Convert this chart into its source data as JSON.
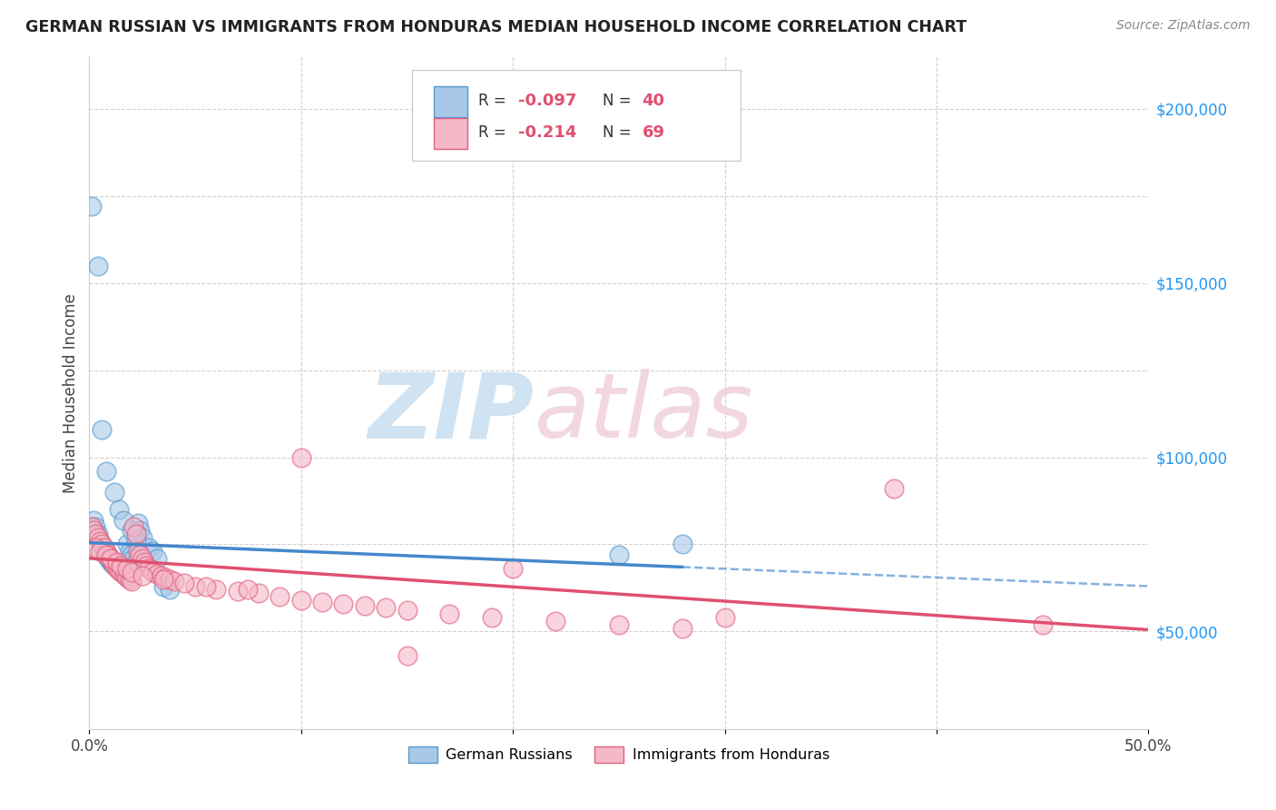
{
  "title": "GERMAN RUSSIAN VS IMMIGRANTS FROM HONDURAS MEDIAN HOUSEHOLD INCOME CORRELATION CHART",
  "source": "Source: ZipAtlas.com",
  "ylabel": "Median Household Income",
  "right_yticks": [
    "$200,000",
    "$150,000",
    "$100,000",
    "$50,000"
  ],
  "right_ytick_vals": [
    200000,
    150000,
    100000,
    50000
  ],
  "blue_color": "#a8c8e8",
  "pink_color": "#f5b8c8",
  "blue_edge_color": "#5599cc",
  "pink_edge_color": "#e06080",
  "blue_line_color": "#4488cc",
  "pink_line_color": "#e05070",
  "blue_label": "German Russians",
  "pink_label": "Immigrants from Honduras",
  "legend_r1": "-0.097",
  "legend_n1": "40",
  "legend_r2": "-0.214",
  "legend_n2": "69",
  "xmin": 0.0,
  "xmax": 0.5,
  "ymin": 22000,
  "ymax": 215000,
  "blue_x": [
    0.001,
    0.002,
    0.003,
    0.004,
    0.005,
    0.006,
    0.007,
    0.008,
    0.009,
    0.01,
    0.011,
    0.012,
    0.013,
    0.014,
    0.015,
    0.016,
    0.017,
    0.018,
    0.019,
    0.02,
    0.021,
    0.022,
    0.023,
    0.024,
    0.025,
    0.028,
    0.03,
    0.032,
    0.035,
    0.038,
    0.004,
    0.006,
    0.008,
    0.012,
    0.014,
    0.016,
    0.02,
    0.022,
    0.25,
    0.28
  ],
  "blue_y": [
    172000,
    82000,
    80000,
    78000,
    76000,
    74000,
    73000,
    72000,
    71000,
    70000,
    69500,
    69000,
    68500,
    68000,
    67500,
    67000,
    66500,
    75000,
    73000,
    72000,
    71000,
    70000,
    81000,
    79000,
    77000,
    74000,
    73000,
    71000,
    63000,
    62000,
    155000,
    108000,
    96000,
    90000,
    85000,
    82000,
    79000,
    76000,
    72000,
    75000
  ],
  "pink_x": [
    0.001,
    0.002,
    0.003,
    0.004,
    0.005,
    0.006,
    0.007,
    0.008,
    0.009,
    0.01,
    0.011,
    0.012,
    0.013,
    0.014,
    0.015,
    0.016,
    0.017,
    0.018,
    0.019,
    0.02,
    0.021,
    0.022,
    0.023,
    0.024,
    0.025,
    0.026,
    0.027,
    0.028,
    0.03,
    0.032,
    0.034,
    0.036,
    0.038,
    0.04,
    0.05,
    0.06,
    0.07,
    0.08,
    0.09,
    0.1,
    0.11,
    0.12,
    0.13,
    0.14,
    0.15,
    0.17,
    0.19,
    0.22,
    0.25,
    0.28,
    0.003,
    0.005,
    0.008,
    0.01,
    0.013,
    0.015,
    0.018,
    0.02,
    0.025,
    0.035,
    0.045,
    0.055,
    0.075,
    0.1,
    0.15,
    0.2,
    0.3,
    0.38,
    0.45
  ],
  "pink_y": [
    80000,
    79000,
    78000,
    77000,
    76000,
    75000,
    74000,
    73000,
    72000,
    71000,
    70000,
    69000,
    68000,
    67500,
    67000,
    66500,
    66000,
    65500,
    65000,
    64500,
    80000,
    78000,
    73000,
    72000,
    71000,
    70000,
    69000,
    68000,
    67000,
    66500,
    66000,
    65500,
    65000,
    64500,
    63000,
    62000,
    61500,
    61000,
    60000,
    59000,
    58500,
    58000,
    57500,
    57000,
    56000,
    55000,
    54000,
    53000,
    52000,
    51000,
    74000,
    73000,
    72000,
    71000,
    70000,
    69000,
    68000,
    67000,
    66000,
    65000,
    64000,
    63000,
    62000,
    100000,
    43000,
    68000,
    54000,
    91000,
    52000
  ]
}
